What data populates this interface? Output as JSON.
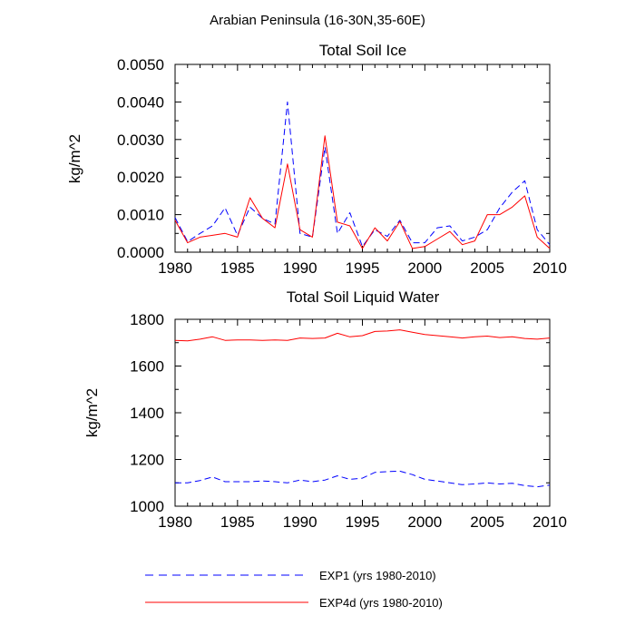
{
  "figure_title": "Arabian Peninsula (16-30N,35-60E)",
  "colors": {
    "exp1": "#0000ff",
    "exp4d": "#ff0000",
    "axes": "#000000"
  },
  "legend": [
    {
      "label": "EXP1 (yrs 1980-2010)",
      "color": "#0000ff",
      "style": "dashed"
    },
    {
      "label": "EXP4d (yrs 1980-2010)",
      "color": "#ff0000",
      "style": "solid"
    }
  ],
  "chart_data": [
    {
      "type": "line",
      "title": "Total Soil Ice",
      "xlabel": "",
      "ylabel": "kg/m^2",
      "xlim": [
        1980,
        2010
      ],
      "ylim": [
        0,
        0.005
      ],
      "xticks": [
        1980,
        1985,
        1990,
        1995,
        2000,
        2005,
        2010
      ],
      "yticks": [
        0.0,
        0.001,
        0.002,
        0.003,
        0.004,
        0.005
      ],
      "ytick_labels": [
        "0.0000",
        "0.0010",
        "0.0020",
        "0.0030",
        "0.0040",
        "0.0050"
      ],
      "x": [
        1980,
        1981,
        1982,
        1983,
        1984,
        1985,
        1986,
        1987,
        1988,
        1989,
        1990,
        1991,
        1992,
        1993,
        1994,
        1995,
        1996,
        1997,
        1998,
        1999,
        2000,
        2001,
        2002,
        2003,
        2004,
        2005,
        2006,
        2007,
        2008,
        2009,
        2010
      ],
      "series": [
        {
          "name": "EXP1 (yrs 1980-2010)",
          "color": "#0000ff",
          "dash": "dashed",
          "values": [
            0.00092,
            0.00028,
            0.0005,
            0.0007,
            0.00118,
            0.00045,
            0.0012,
            0.0009,
            0.00075,
            0.004,
            0.0005,
            0.0004,
            0.0028,
            0.0005,
            0.00105,
            0.00015,
            0.0006,
            0.00042,
            0.00085,
            0.00025,
            0.00025,
            0.00065,
            0.0007,
            0.0003,
            0.0004,
            0.0006,
            0.00118,
            0.0016,
            0.0019,
            0.0006,
            0.0002
          ]
        },
        {
          "name": "EXP4d (yrs 1980-2010)",
          "color": "#ff0000",
          "dash": "solid",
          "values": [
            0.00085,
            0.00025,
            0.0004,
            0.00045,
            0.0005,
            0.0004,
            0.00145,
            0.0009,
            0.00065,
            0.00235,
            0.0006,
            0.0004,
            0.0031,
            0.0008,
            0.0007,
            0.0001,
            0.00065,
            0.0003,
            0.00082,
            0.0001,
            0.00015,
            0.00035,
            0.00055,
            0.0002,
            0.0003,
            0.001,
            0.001,
            0.0012,
            0.0015,
            0.0004,
            0.0001
          ]
        }
      ]
    },
    {
      "type": "line",
      "title": "Total Soil Liquid Water",
      "xlabel": "",
      "ylabel": "kg/m^2",
      "xlim": [
        1980,
        2010
      ],
      "ylim": [
        1000,
        1800
      ],
      "xticks": [
        1980,
        1985,
        1990,
        1995,
        2000,
        2005,
        2010
      ],
      "yticks": [
        1000,
        1200,
        1400,
        1600,
        1800
      ],
      "ytick_labels": [
        "1000",
        "1200",
        "1400",
        "1600",
        "1800"
      ],
      "x": [
        1980,
        1981,
        1982,
        1983,
        1984,
        1985,
        1986,
        1987,
        1988,
        1989,
        1990,
        1991,
        1992,
        1993,
        1994,
        1995,
        1996,
        1997,
        1998,
        1999,
        2000,
        2001,
        2002,
        2003,
        2004,
        2005,
        2006,
        2007,
        2008,
        2009,
        2010
      ],
      "series": [
        {
          "name": "EXP1 (yrs 1980-2010)",
          "color": "#0000ff",
          "dash": "dashed",
          "values": [
            1100,
            1100,
            1110,
            1125,
            1105,
            1105,
            1105,
            1108,
            1105,
            1100,
            1112,
            1105,
            1112,
            1130,
            1115,
            1120,
            1145,
            1148,
            1150,
            1135,
            1115,
            1108,
            1100,
            1092,
            1095,
            1100,
            1095,
            1098,
            1088,
            1083,
            1090
          ]
        },
        {
          "name": "EXP4d (yrs 1980-2010)",
          "color": "#ff0000",
          "dash": "solid",
          "values": [
            1710,
            1708,
            1715,
            1725,
            1710,
            1712,
            1712,
            1710,
            1712,
            1710,
            1720,
            1718,
            1720,
            1740,
            1725,
            1730,
            1748,
            1750,
            1755,
            1745,
            1735,
            1730,
            1725,
            1720,
            1725,
            1728,
            1722,
            1725,
            1718,
            1715,
            1720
          ]
        }
      ]
    }
  ]
}
